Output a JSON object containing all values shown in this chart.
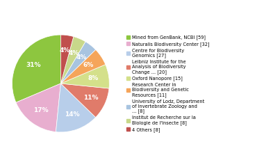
{
  "labels": [
    "Mined from GenBank, NCBI [59]",
    "Naturalis Biodiversity Center [32]",
    "Centre for Biodiversity\nGenomics [27]",
    "Leibniz Institute for the\nAnalysis of Biodiversity\nChange ... [20]",
    "Oxford Nanopore [15]",
    "Research Center in\nBiodiversity and Genetic\nResources [11]",
    "University of Lodz, Department\nof Invertebrate Zoology and\n... [8]",
    "Institut de Recherche sur la\nBiologie de l'Insecte [8]",
    "4 Others [8]"
  ],
  "values": [
    59,
    32,
    27,
    20,
    15,
    11,
    8,
    8,
    8
  ],
  "colors": [
    "#8DC63F",
    "#E8AECF",
    "#B8CEEA",
    "#E07B6A",
    "#D4E08A",
    "#F5A55A",
    "#A8C4E0",
    "#C8D88A",
    "#C0504D"
  ],
  "startangle": 90,
  "figsize": [
    3.8,
    2.4
  ],
  "dpi": 100
}
